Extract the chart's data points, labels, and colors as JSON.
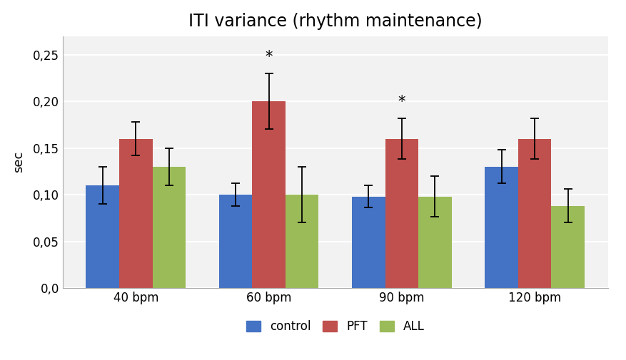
{
  "title": "ITI variance (rhythm maintenance)",
  "categories": [
    "40 bpm",
    "60 bpm",
    "90 bpm",
    "120 bpm"
  ],
  "groups": [
    "control",
    "PFT",
    "ALL"
  ],
  "values": {
    "control": [
      0.11,
      0.1,
      0.098,
      0.13
    ],
    "PFT": [
      0.16,
      0.2,
      0.16,
      0.16
    ],
    "ALL": [
      0.13,
      0.1,
      0.098,
      0.088
    ]
  },
  "errors": {
    "control": [
      0.02,
      0.012,
      0.012,
      0.018
    ],
    "PFT": [
      0.018,
      0.03,
      0.022,
      0.022
    ],
    "ALL": [
      0.02,
      0.03,
      0.022,
      0.018
    ]
  },
  "colors": {
    "control": "#4472C4",
    "PFT": "#C0504D",
    "ALL": "#9BBB59"
  },
  "ylabel": "sec",
  "ylim": [
    0.0,
    0.27
  ],
  "yticks": [
    0.0,
    0.05,
    0.1,
    0.15,
    0.2,
    0.25
  ],
  "ytick_labels": [
    "0,0",
    "0,05",
    "0,10",
    "0,15",
    "0,20",
    "0,25"
  ],
  "significance": {
    "60 bpm": "PFT",
    "90 bpm": "PFT"
  },
  "bar_width": 0.25,
  "background_color": "#FFFFFF",
  "plot_bg_color": "#F2F2F2",
  "title_fontsize": 17,
  "axis_label_fontsize": 13,
  "tick_fontsize": 12,
  "legend_fontsize": 12,
  "grid_color": "#FFFFFF",
  "grid_linewidth": 1.5
}
